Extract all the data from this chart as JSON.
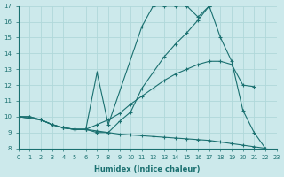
{
  "xlabel": "Humidex (Indice chaleur)",
  "xlim": [
    0,
    23
  ],
  "ylim": [
    8,
    17
  ],
  "yticks": [
    8,
    9,
    10,
    11,
    12,
    13,
    14,
    15,
    16,
    17
  ],
  "xticks": [
    0,
    1,
    2,
    3,
    4,
    5,
    6,
    7,
    8,
    9,
    10,
    11,
    12,
    13,
    14,
    15,
    16,
    17,
    18,
    19,
    20,
    21,
    22,
    23
  ],
  "bg_color": "#cce9eb",
  "line_color": "#1a7070",
  "grid_color": "#b0d8da",
  "line1_x": [
    0,
    1,
    2,
    3,
    4,
    5,
    6,
    7,
    8,
    9,
    10,
    11,
    12,
    13,
    14,
    15,
    16,
    17,
    18,
    19,
    20,
    21,
    22
  ],
  "line1_y": [
    10,
    10,
    9.8,
    9.5,
    9.3,
    9.2,
    9.2,
    9.0,
    9.0,
    9.7,
    10.3,
    11.8,
    12.8,
    13.8,
    14.6,
    15.3,
    16.1,
    17.0,
    15.0,
    13.5,
    10.4,
    9.0,
    8.0
  ],
  "line2_x": [
    0,
    1,
    2,
    3,
    4,
    5,
    6,
    7,
    8,
    11,
    12,
    13,
    14,
    15,
    16,
    17
  ],
  "line2_y": [
    10,
    10,
    9.8,
    9.5,
    9.3,
    9.2,
    9.2,
    12.8,
    9.5,
    15.7,
    17.0,
    17.0,
    17.0,
    17.0,
    16.3,
    17.0
  ],
  "line3_x": [
    0,
    2,
    3,
    4,
    5,
    6,
    7,
    8,
    9,
    10,
    11,
    12,
    13,
    14,
    15,
    16,
    17,
    18,
    19,
    20,
    21
  ],
  "line3_y": [
    10,
    9.8,
    9.5,
    9.3,
    9.2,
    9.2,
    9.5,
    9.8,
    10.2,
    10.8,
    11.3,
    11.8,
    12.3,
    12.7,
    13.0,
    13.3,
    13.5,
    13.5,
    13.3,
    12.0,
    11.9
  ],
  "line4_x": [
    0,
    2,
    3,
    4,
    5,
    6,
    7,
    8,
    9,
    10,
    11,
    12,
    13,
    14,
    15,
    16,
    17,
    18,
    19,
    20,
    21,
    22
  ],
  "line4_y": [
    10,
    9.8,
    9.5,
    9.3,
    9.2,
    9.2,
    9.1,
    9.0,
    8.9,
    8.85,
    8.8,
    8.75,
    8.7,
    8.65,
    8.6,
    8.55,
    8.5,
    8.4,
    8.3,
    8.2,
    8.1,
    8.0
  ]
}
